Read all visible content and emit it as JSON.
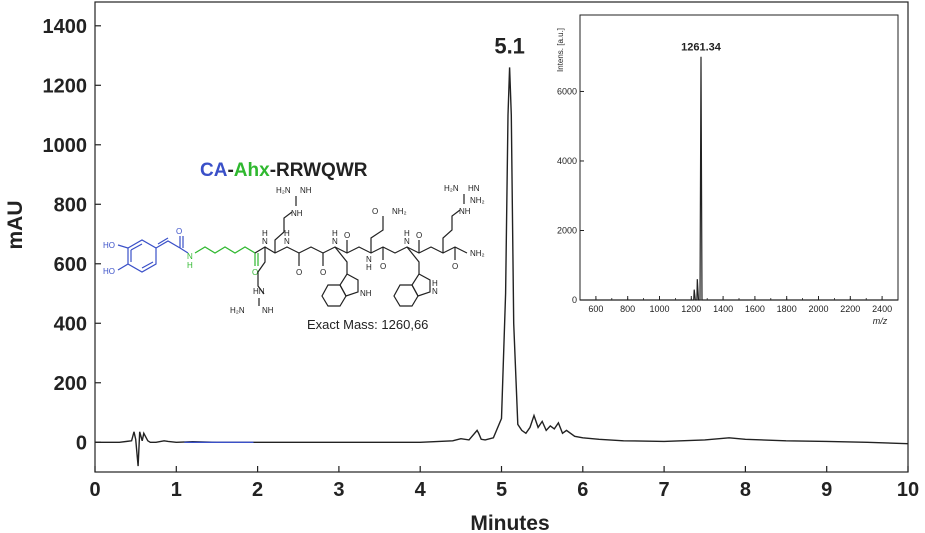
{
  "chart_data": [
    {
      "type": "line",
      "xlabel": "Minutes",
      "ylabel": "mAU",
      "xlim": [
        0,
        10
      ],
      "ylim": [
        -100,
        1480
      ],
      "xticks": [
        "0",
        "1",
        "2",
        "3",
        "4",
        "5",
        "6",
        "7",
        "8",
        "9",
        "10"
      ],
      "yticks": [
        "0",
        "200",
        "400",
        "600",
        "800",
        "1000",
        "1200",
        "1400"
      ],
      "peak_label": "5.1",
      "peak": {
        "x": 5.1,
        "y": 1260
      },
      "colors": {
        "line": "#222222",
        "line_segment": "#3a50c8"
      },
      "series": [
        {
          "x": [
            0.0,
            0.3,
            0.45,
            0.48,
            0.5,
            0.53,
            0.55,
            0.58,
            0.6,
            0.65,
            0.68,
            0.75,
            0.85,
            0.9,
            1.0,
            1.2,
            1.5,
            1.8,
            2.0,
            2.5,
            3.0,
            3.5,
            4.0,
            4.4,
            4.5,
            4.6,
            4.7,
            4.72,
            4.75,
            4.8,
            4.9,
            5.0,
            5.05,
            5.08,
            5.1,
            5.12,
            5.15,
            5.2,
            5.25,
            5.3,
            5.35,
            5.4,
            5.45,
            5.5,
            5.55,
            5.6,
            5.65,
            5.7,
            5.75,
            5.8,
            5.9,
            6.0,
            6.2,
            6.5,
            7.0,
            7.5,
            7.8,
            8.0,
            8.5,
            9.0,
            9.5,
            10.0
          ],
          "y": [
            0,
            0,
            5,
            35,
            10,
            -80,
            35,
            5,
            30,
            5,
            0,
            0,
            5,
            3,
            0,
            2,
            0,
            0,
            0,
            0,
            0,
            0,
            0,
            5,
            12,
            8,
            40,
            30,
            10,
            8,
            15,
            80,
            500,
            1100,
            1260,
            1100,
            400,
            60,
            40,
            30,
            50,
            90,
            50,
            70,
            40,
            55,
            45,
            65,
            30,
            40,
            20,
            15,
            10,
            5,
            3,
            8,
            15,
            10,
            5,
            3,
            0,
            -5
          ]
        }
      ]
    },
    {
      "type": "line",
      "xlabel": "m/z",
      "ylabel": "Intens. [a.u.]",
      "xlim": [
        500,
        2500
      ],
      "ylim": [
        0,
        8200
      ],
      "xticks": [
        "600",
        "800",
        "1000",
        "1200",
        "1400",
        "1600",
        "1800",
        "2000",
        "2200",
        "2400"
      ],
      "yticks": [
        "0",
        "2000",
        "4000",
        "6000"
      ],
      "peak_label": "1261.34",
      "series": [
        {
          "x": [
            500,
            1200,
            1215,
            1218,
            1225,
            1235,
            1238,
            1245,
            1255,
            1261,
            1267,
            1280,
            1400,
            2500
          ],
          "y": [
            0,
            0,
            0,
            300,
            0,
            0,
            600,
            0,
            0,
            7000,
            0,
            0,
            0,
            0
          ]
        }
      ]
    }
  ],
  "structure": {
    "title_parts": [
      "CA",
      "-",
      "Ahx",
      "-",
      "RRWQWR"
    ],
    "exact_mass": "Exact Mass: 1260,66",
    "atom_labels": {
      "ho1": "HO",
      "ho2": "HO",
      "n_green": "N",
      "h_green": "H",
      "n1": "N",
      "h1": "H",
      "n2": "N",
      "h2": "H",
      "n3": "N",
      "h3": "H",
      "n4": "N",
      "h4": "H",
      "n5": "N",
      "h5": "H",
      "nh1": "NH",
      "nh2": "NH",
      "nh3": "NH",
      "hn1": "HN",
      "hn2": "HN",
      "h2n1": "H₂N",
      "h2n2": "H₂N",
      "h2n3": "H₂N",
      "nh2a": "NH₂",
      "nh2b": "NH₂",
      "nh2c": "NH₂",
      "hn_top": "H",
      "n_top": "N",
      "hn_top2": "H",
      "n_top2": "N",
      "nh_bot": "NH",
      "h_bot": "H",
      "n_bot": "N",
      "o1": "O",
      "o2": "O",
      "o3": "O",
      "o4": "O",
      "o5": "O",
      "o6": "O",
      "o7": "O",
      "o8": "O"
    }
  }
}
